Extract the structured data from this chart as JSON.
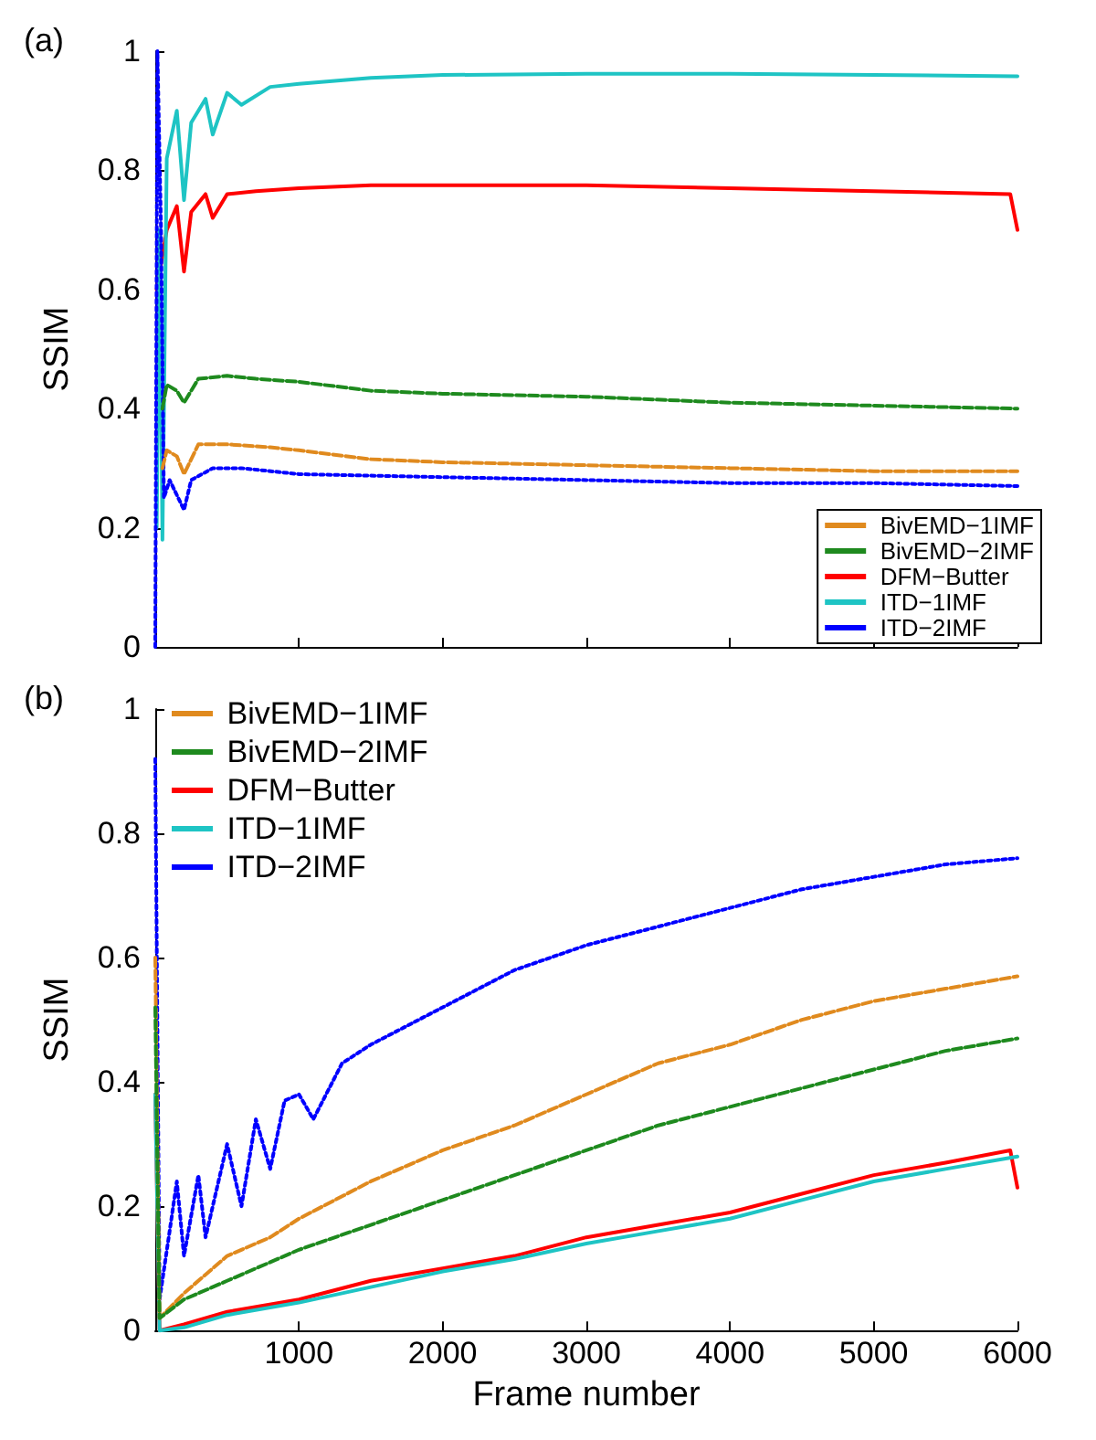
{
  "chart_data": [
    {
      "type": "line",
      "title": "(a)",
      "ylabel": "SSIM",
      "xlim": [
        0,
        6000
      ],
      "xticks": [
        1000,
        2000,
        3000,
        4000,
        5000,
        6000
      ],
      "ylim": [
        0,
        1
      ],
      "yticks": [
        0,
        0.2,
        0.4,
        0.6,
        0.8,
        1
      ],
      "tick_labels": "y",
      "grid": false,
      "legend": "bottom right",
      "marker": "none",
      "series": [
        {
          "name": "BivEMD−1IMF",
          "color": "#e08a1e",
          "line_style": "dashed",
          "x": [
            50,
            80,
            150,
            200,
            300,
            500,
            800,
            1000,
            1500,
            2000,
            3000,
            4000,
            5000,
            6000
          ],
          "values": [
            0.3,
            0.33,
            0.32,
            0.29,
            0.34,
            0.34,
            0.335,
            0.33,
            0.315,
            0.31,
            0.305,
            0.3,
            0.295,
            0.295
          ]
        },
        {
          "name": "BivEMD−2IMF",
          "color": "#1e8a1e",
          "line_style": "dashed",
          "x": [
            50,
            80,
            150,
            200,
            300,
            500,
            700,
            1000,
            1500,
            2000,
            3000,
            4000,
            5000,
            6000
          ],
          "values": [
            0.4,
            0.44,
            0.43,
            0.41,
            0.45,
            0.455,
            0.45,
            0.445,
            0.43,
            0.425,
            0.42,
            0.41,
            0.405,
            0.4
          ]
        },
        {
          "name": "DFM−Butter",
          "color": "#ff0000",
          "line_style": "solid",
          "x": [
            10,
            80,
            150,
            200,
            250,
            350,
            400,
            500,
            700,
            1000,
            1500,
            2000,
            3000,
            4000,
            5000,
            5950,
            6000
          ],
          "values": [
            0.6,
            0.7,
            0.74,
            0.63,
            0.73,
            0.76,
            0.72,
            0.76,
            0.765,
            0.77,
            0.775,
            0.775,
            0.775,
            0.77,
            0.765,
            0.76,
            0.7
          ]
        },
        {
          "name": "ITD−1IMF",
          "color": "#1ec4c4",
          "line_style": "solid",
          "x": [
            10,
            30,
            50,
            80,
            150,
            200,
            250,
            350,
            400,
            500,
            600,
            800,
            1000,
            1500,
            2000,
            3000,
            4000,
            5000,
            6000
          ],
          "values": [
            0.2,
            0.7,
            0.18,
            0.82,
            0.9,
            0.75,
            0.88,
            0.92,
            0.86,
            0.93,
            0.91,
            0.94,
            0.945,
            0.955,
            0.96,
            0.962,
            0.962,
            0.96,
            0.958
          ]
        },
        {
          "name": "ITD−2IMF",
          "color": "#0000ff",
          "line_style": "dotted",
          "x": [
            0,
            15,
            40,
            60,
            100,
            200,
            250,
            400,
            600,
            1000,
            2000,
            3000,
            4000,
            5000,
            6000
          ],
          "values": [
            0,
            1,
            0.7,
            0.25,
            0.28,
            0.23,
            0.28,
            0.3,
            0.3,
            0.29,
            0.285,
            0.28,
            0.275,
            0.275,
            0.27
          ]
        }
      ]
    },
    {
      "type": "line",
      "title": "(b)",
      "xlabel": "Frame number",
      "ylabel": "SSIM",
      "xlim": [
        0,
        6000
      ],
      "xticks": [
        1000,
        2000,
        3000,
        4000,
        5000,
        6000
      ],
      "ylim": [
        0,
        1
      ],
      "yticks": [
        0,
        0.2,
        0.4,
        0.6,
        0.8,
        1
      ],
      "grid": false,
      "legend": "top left",
      "marker": "none",
      "series": [
        {
          "name": "BivEMD−1IMF",
          "color": "#e08a1e",
          "line_style": "dashed",
          "x": [
            0,
            30,
            200,
            500,
            800,
            1000,
            1500,
            2000,
            2500,
            3000,
            3500,
            4000,
            4500,
            5000,
            5500,
            6000
          ],
          "values": [
            0.6,
            0.02,
            0.06,
            0.12,
            0.15,
            0.18,
            0.24,
            0.29,
            0.33,
            0.38,
            0.43,
            0.46,
            0.5,
            0.53,
            0.55,
            0.57
          ]
        },
        {
          "name": "BivEMD−2IMF",
          "color": "#1e8a1e",
          "line_style": "dashed",
          "x": [
            0,
            30,
            200,
            500,
            1000,
            1500,
            2000,
            2500,
            3000,
            3500,
            4000,
            4500,
            5000,
            5500,
            6000
          ],
          "values": [
            0.52,
            0.02,
            0.05,
            0.08,
            0.13,
            0.17,
            0.21,
            0.25,
            0.29,
            0.33,
            0.36,
            0.39,
            0.42,
            0.45,
            0.47
          ]
        },
        {
          "name": "DFM−Butter",
          "color": "#ff0000",
          "line_style": "solid",
          "x": [
            0,
            30,
            200,
            500,
            1000,
            1500,
            2000,
            2500,
            3000,
            3500,
            4000,
            4500,
            5000,
            5500,
            5950,
            6000
          ],
          "values": [
            0.38,
            0,
            0.01,
            0.03,
            0.05,
            0.08,
            0.1,
            0.12,
            0.15,
            0.17,
            0.19,
            0.22,
            0.25,
            0.27,
            0.29,
            0.23
          ]
        },
        {
          "name": "ITD−1IMF",
          "color": "#1ec4c4",
          "line_style": "solid",
          "x": [
            0,
            30,
            200,
            500,
            1000,
            1500,
            2000,
            2500,
            3000,
            3500,
            4000,
            4500,
            5000,
            5500,
            6000
          ],
          "values": [
            0.38,
            0,
            0.005,
            0.025,
            0.045,
            0.07,
            0.095,
            0.115,
            0.14,
            0.16,
            0.18,
            0.21,
            0.24,
            0.26,
            0.28
          ]
        },
        {
          "name": "ITD−2IMF",
          "color": "#0000ff",
          "line_style": "dotted",
          "x": [
            0,
            30,
            100,
            150,
            200,
            300,
            350,
            500,
            600,
            700,
            800,
            900,
            1000,
            1100,
            1300,
            1500,
            2000,
            2500,
            3000,
            3500,
            4000,
            4500,
            5000,
            5500,
            6000
          ],
          "values": [
            0.92,
            0.05,
            0.16,
            0.24,
            0.12,
            0.25,
            0.15,
            0.3,
            0.2,
            0.34,
            0.26,
            0.37,
            0.38,
            0.34,
            0.43,
            0.46,
            0.52,
            0.58,
            0.62,
            0.65,
            0.68,
            0.71,
            0.73,
            0.75,
            0.76
          ]
        }
      ]
    }
  ]
}
